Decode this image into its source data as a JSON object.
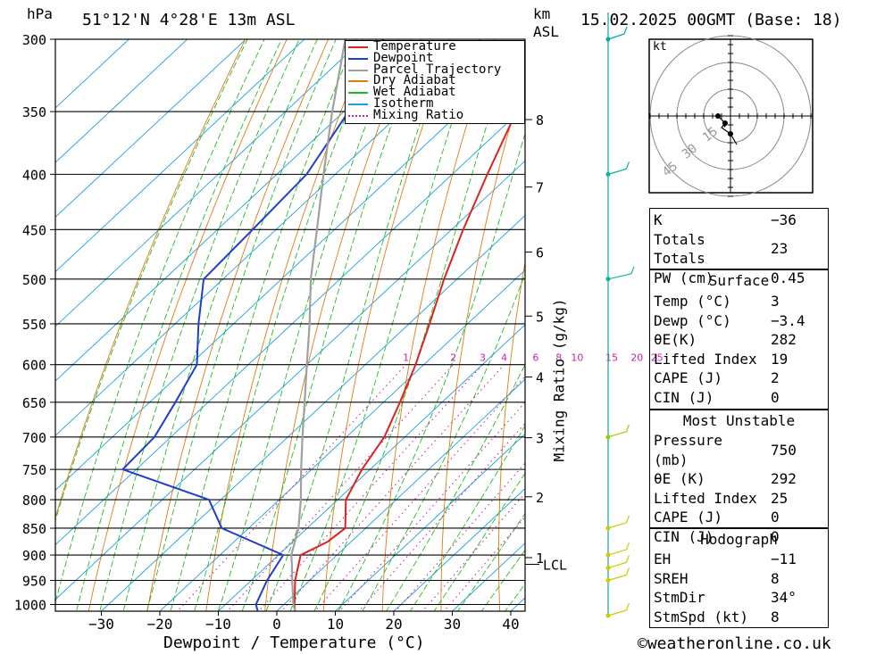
{
  "header": {
    "location": "51°12'N  4°28'E  13m  ASL",
    "run": "15.02.2025  00GMT  (Base: 18)",
    "hpa_label": "hPa",
    "km_label": "km",
    "asl_label": "ASL"
  },
  "chart_data": {
    "type": "line",
    "title": "Skew-T log-P sounding",
    "xlabel": "Dewpoint / Temperature (°C)",
    "ylabel": "hPa",
    "right_axis_label": "Mixing Ratio (g/kg)",
    "pressure_levels": [
      300,
      350,
      400,
      450,
      500,
      550,
      600,
      650,
      700,
      750,
      800,
      850,
      900,
      950,
      1000
    ],
    "temperature_ticks": [
      -30,
      -20,
      -10,
      0,
      10,
      20,
      30,
      40
    ],
    "temperature_ticks_text": [
      "−30",
      "−20",
      "−10",
      "0",
      "10",
      "20",
      "30",
      "40"
    ],
    "km_ticks": [
      {
        "km": "1",
        "p": 905
      },
      {
        "km": "2",
        "p": 795
      },
      {
        "km": "3",
        "p": 701
      },
      {
        "km": "4",
        "p": 616
      },
      {
        "km": "5",
        "p": 541
      },
      {
        "km": "6",
        "p": 472
      },
      {
        "km": "7",
        "p": 411
      },
      {
        "km": "8",
        "p": 356
      }
    ],
    "lcl": {
      "label": "LCL",
      "p": 918
    },
    "mixing_ratio_labels": [
      "1",
      "2",
      "3",
      "4",
      "6",
      "8",
      "10",
      "15",
      "20",
      "25"
    ],
    "mixing_ratio_label_pressure": 600,
    "series": [
      {
        "name": "Temperature",
        "color": "#dd2222",
        "points": [
          [
            1013,
            3
          ],
          [
            1000,
            1.8
          ],
          [
            950,
            -2.5
          ],
          [
            900,
            -6.2
          ],
          [
            875,
            -4.0
          ],
          [
            850,
            -3.5
          ],
          [
            800,
            -8.6
          ],
          [
            750,
            -11.4
          ],
          [
            700,
            -13.5
          ],
          [
            650,
            -17.2
          ],
          [
            600,
            -21.4
          ],
          [
            550,
            -26.5
          ],
          [
            500,
            -32.2
          ],
          [
            450,
            -38.0
          ],
          [
            400,
            -44.0
          ],
          [
            350,
            -50.5
          ],
          [
            300,
            -57.0
          ]
        ]
      },
      {
        "name": "Dewpoint",
        "color": "#1f3fcc",
        "points": [
          [
            1013,
            -3.4
          ],
          [
            1000,
            -4.8
          ],
          [
            950,
            -7.3
          ],
          [
            900,
            -9.2
          ],
          [
            850,
            -24.6
          ],
          [
            800,
            -32.0
          ],
          [
            750,
            -52.3
          ],
          [
            700,
            -52.8
          ],
          [
            650,
            -55.6
          ],
          [
            600,
            -58.8
          ],
          [
            550,
            -66.0
          ],
          [
            500,
            -73.3
          ],
          [
            450,
            -74.0
          ],
          [
            400,
            -74.9
          ],
          [
            350,
            -79.2
          ],
          [
            300,
            -86.5
          ]
        ]
      },
      {
        "name": "Parcel Trajectory",
        "color": "#a0a0a0",
        "points": [
          [
            1013,
            3
          ],
          [
            1000,
            1.6
          ],
          [
            950,
            -3.0
          ],
          [
            918,
            -6.0
          ],
          [
            900,
            -7.8
          ],
          [
            850,
            -11.5
          ],
          [
            800,
            -16.3
          ],
          [
            750,
            -21.8
          ],
          [
            700,
            -27.5
          ],
          [
            650,
            -33.5
          ],
          [
            600,
            -40.0
          ],
          [
            550,
            -47.0
          ],
          [
            500,
            -55.0
          ],
          [
            450,
            -63.0
          ],
          [
            400,
            -72.0
          ],
          [
            350,
            -82.0
          ],
          [
            300,
            -93.0
          ]
        ]
      }
    ],
    "legend": [
      "Temperature",
      "Dewpoint",
      "Parcel Trajectory",
      "Dry Adiabat",
      "Wet Adiabat",
      "Isotherm",
      "Mixing Ratio"
    ],
    "legend_colors": [
      "#dd2222",
      "#1f3fcc",
      "#a0a0a0",
      "#e07a10",
      "#22bb22",
      "#1aa0e0",
      "#cc22aa"
    ],
    "legend_position": "top-right",
    "wind_barbs": [
      {
        "p": 1000,
        "kt": 8
      },
      {
        "p": 950,
        "kt": 8
      },
      {
        "p": 925,
        "kt": 8
      },
      {
        "p": 900,
        "kt": 8
      },
      {
        "p": 850,
        "kt": 8
      },
      {
        "p": 700,
        "kt": 8
      },
      {
        "p": 500,
        "kt": 15
      },
      {
        "p": 400,
        "kt": 8
      },
      {
        "p": 300,
        "kt": 5
      }
    ]
  },
  "hodograph": {
    "unit": "kt",
    "ring_labels": [
      "15",
      "30",
      "45"
    ]
  },
  "indices": {
    "general": [
      {
        "label": "K",
        "value": "−36"
      },
      {
        "label": "Totals Totals",
        "value": "23"
      },
      {
        "label": "PW (cm)",
        "value": "0.45"
      }
    ],
    "surface": {
      "title": "Surface",
      "rows": [
        {
          "label": "Temp (°C)",
          "value": "3"
        },
        {
          "label": "Dewp (°C)",
          "value": "−3.4"
        },
        {
          "label": "θE(K)",
          "value": "282"
        },
        {
          "label": "Lifted Index",
          "value": "19"
        },
        {
          "label": "CAPE (J)",
          "value": "2"
        },
        {
          "label": "CIN (J)",
          "value": "0"
        }
      ]
    },
    "most_unstable": {
      "title": "Most Unstable",
      "rows": [
        {
          "label": "Pressure (mb)",
          "value": "750"
        },
        {
          "label": "θE (K)",
          "value": "292"
        },
        {
          "label": "Lifted Index",
          "value": "25"
        },
        {
          "label": "CAPE (J)",
          "value": "0"
        },
        {
          "label": "CIN (J)",
          "value": "0"
        }
      ]
    },
    "hodograph_section": {
      "title": "Hodograph",
      "rows": [
        {
          "label": "EH",
          "value": "−11"
        },
        {
          "label": "SREH",
          "value": "8"
        },
        {
          "label": "StmDir",
          "value": "34°"
        },
        {
          "label": "StmSpd (kt)",
          "value": "8"
        }
      ]
    }
  },
  "footer": {
    "copyright": "©weatheronline.co.uk"
  }
}
